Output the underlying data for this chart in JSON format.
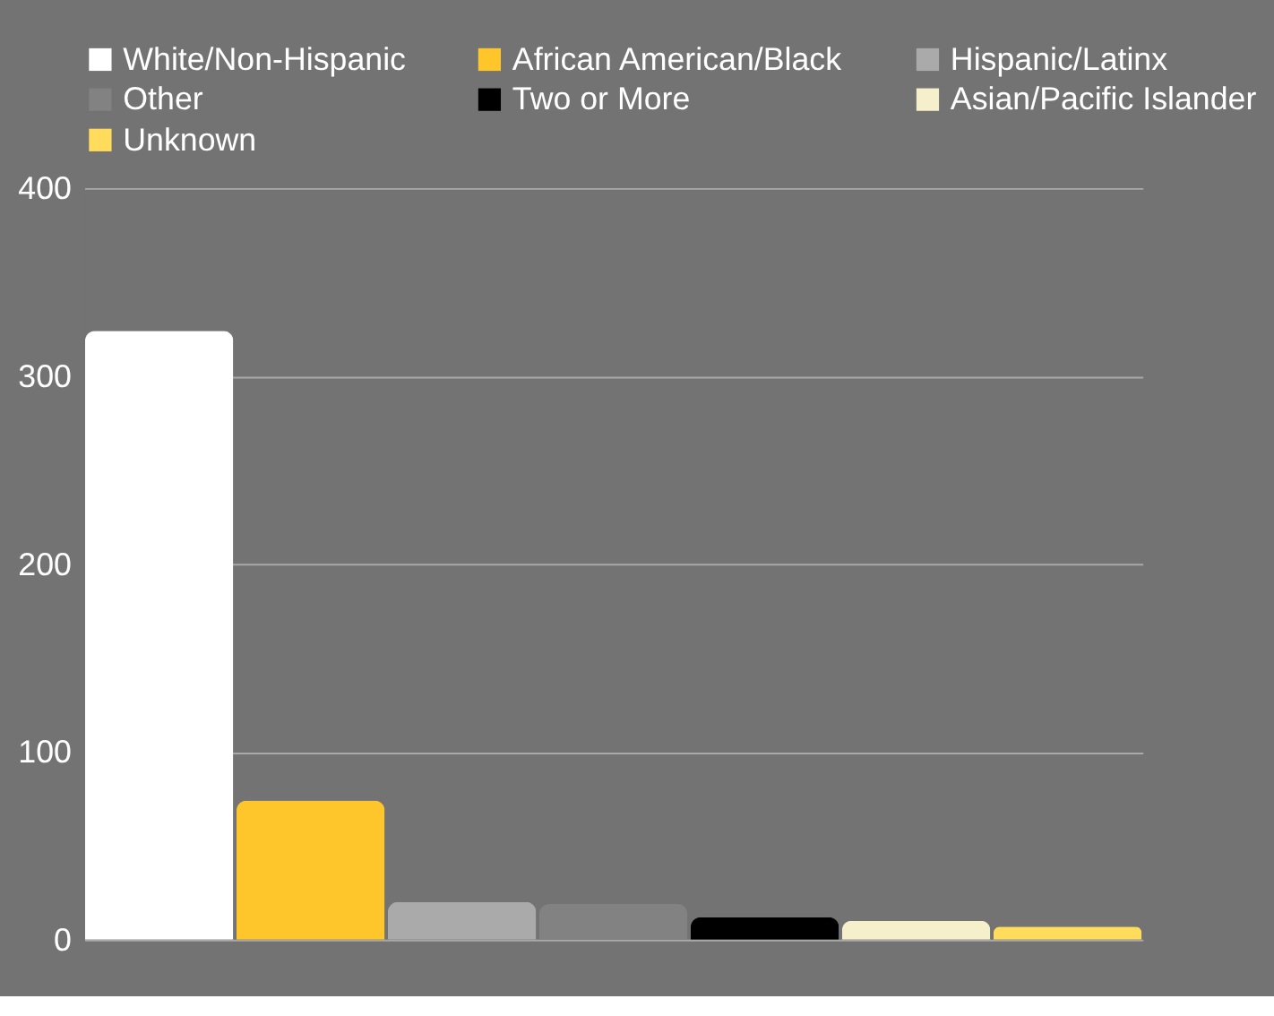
{
  "chart_data": {
    "type": "bar",
    "categories": [
      null
    ],
    "series": [
      {
        "name": "White/Non-Hispanic",
        "color": "#ffffff",
        "values": [
          324
        ]
      },
      {
        "name": "African American/Black",
        "color": "#ffc62c",
        "values": [
          74
        ]
      },
      {
        "name": "Hispanic/Latinx",
        "color": "#aaaaaa",
        "values": [
          20
        ]
      },
      {
        "name": "Other",
        "color": "#828282",
        "values": [
          19
        ]
      },
      {
        "name": "Two or More",
        "color": "#000000",
        "values": [
          12
        ]
      },
      {
        "name": "Asian/Pacific Islander",
        "color": "#f5efcb",
        "values": [
          10
        ]
      },
      {
        "name": "Unknown",
        "color": "#ffdc5c",
        "values": [
          7
        ]
      }
    ],
    "ylim": [
      0,
      400
    ],
    "yticks": [
      0,
      100,
      200,
      300,
      400
    ],
    "grid": "y",
    "legend": "top"
  }
}
